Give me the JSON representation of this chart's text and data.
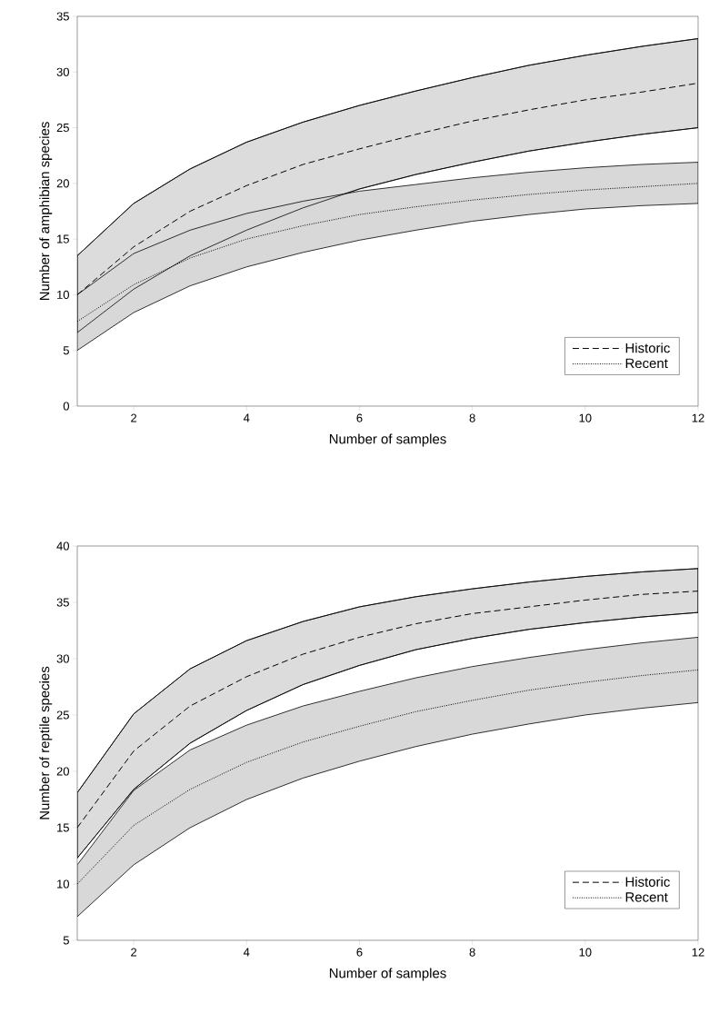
{
  "chart_data": [
    {
      "type": "line",
      "xlabel": "Number of samples",
      "ylabel": "Number of amphibian species",
      "x": [
        1,
        2,
        3,
        4,
        5,
        6,
        7,
        8,
        9,
        10,
        11,
        12
      ],
      "xlim": [
        1,
        12
      ],
      "xticks": [
        2,
        4,
        6,
        8,
        10,
        12
      ],
      "ylim": [
        0,
        35
      ],
      "yticks": [
        0,
        5,
        10,
        15,
        20,
        25,
        30,
        35
      ],
      "legend": "bottom right",
      "grid": false,
      "series": [
        {
          "name": "Historic",
          "color": "#000000",
          "line_style": "dashed",
          "values": [
            10,
            14.3,
            17.5,
            19.8,
            21.7,
            23.1,
            24.4,
            25.6,
            26.6,
            27.5,
            28.2,
            29.0
          ],
          "upper": [
            13.5,
            18.2,
            21.3,
            23.7,
            25.5,
            27.0,
            28.3,
            29.5,
            30.6,
            31.5,
            32.3,
            33.0
          ],
          "lower": [
            6.6,
            10.5,
            13.5,
            15.8,
            17.8,
            19.5,
            20.8,
            21.9,
            22.9,
            23.7,
            24.4,
            25.0
          ]
        },
        {
          "name": "Recent",
          "color": "#000000",
          "line_style": "dotted",
          "values": [
            7.6,
            10.9,
            13.3,
            15.0,
            16.2,
            17.2,
            17.9,
            18.5,
            19.0,
            19.4,
            19.7,
            20.0
          ],
          "upper": [
            10.0,
            13.7,
            15.8,
            17.3,
            18.4,
            19.3,
            19.9,
            20.5,
            21.0,
            21.4,
            21.7,
            21.9
          ],
          "lower": [
            5.0,
            8.4,
            10.8,
            12.5,
            13.8,
            14.9,
            15.8,
            16.6,
            17.2,
            17.7,
            18.0,
            18.2
          ]
        }
      ]
    },
    {
      "type": "line",
      "xlabel": "Number of samples",
      "ylabel": "Number of reptile species",
      "x": [
        1,
        2,
        3,
        4,
        5,
        6,
        7,
        8,
        9,
        10,
        11,
        12
      ],
      "xlim": [
        1,
        12
      ],
      "xticks": [
        2,
        4,
        6,
        8,
        10,
        12
      ],
      "ylim": [
        5,
        40
      ],
      "yticks": [
        5,
        10,
        15,
        20,
        25,
        30,
        35,
        40
      ],
      "legend": "bottom right",
      "grid": false,
      "series": [
        {
          "name": "Historic",
          "color": "#000000",
          "line_style": "dashed",
          "values": [
            15.0,
            21.8,
            25.8,
            28.4,
            30.4,
            31.9,
            33.1,
            34.0,
            34.6,
            35.2,
            35.7,
            36.0
          ],
          "upper": [
            18.1,
            25.1,
            29.1,
            31.6,
            33.3,
            34.6,
            35.5,
            36.2,
            36.8,
            37.3,
            37.7,
            38.0
          ],
          "lower": [
            12.3,
            18.4,
            22.5,
            25.4,
            27.7,
            29.4,
            30.8,
            31.8,
            32.6,
            33.2,
            33.7,
            34.1
          ]
        },
        {
          "name": "Recent",
          "color": "#000000",
          "line_style": "dotted",
          "values": [
            10.0,
            15.2,
            18.4,
            20.8,
            22.6,
            24.0,
            25.3,
            26.3,
            27.2,
            27.9,
            28.5,
            29.0
          ],
          "upper": [
            11.7,
            18.3,
            21.9,
            24.1,
            25.8,
            27.1,
            28.3,
            29.3,
            30.1,
            30.8,
            31.4,
            31.9
          ],
          "lower": [
            7.1,
            11.7,
            15.0,
            17.5,
            19.4,
            20.9,
            22.2,
            23.3,
            24.2,
            25.0,
            25.6,
            26.1
          ]
        }
      ]
    }
  ]
}
